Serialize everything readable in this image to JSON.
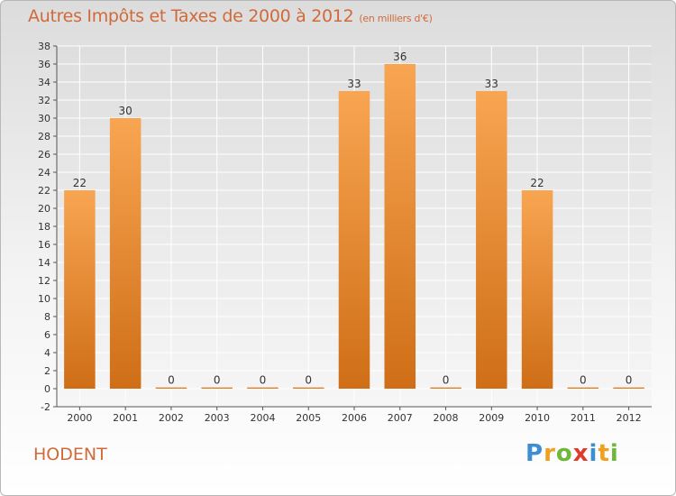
{
  "header": {
    "title": "Autres Impôts et Taxes de 2000 à 2012",
    "subtitle": "(en milliers d'€)"
  },
  "commune": "HODENT",
  "logo": {
    "letters": [
      "P",
      "r",
      "o",
      "x",
      "i",
      "t",
      "i"
    ],
    "colors": [
      "#3d8fd1",
      "#f0a020",
      "#6fb83a",
      "#e03a2a",
      "#3d8fd1",
      "#f0a020",
      "#6fb83a"
    ]
  },
  "chart_data": {
    "type": "bar",
    "categories": [
      "2000",
      "2001",
      "2002",
      "2003",
      "2004",
      "2005",
      "2006",
      "2007",
      "2008",
      "2009",
      "2010",
      "2011",
      "2012"
    ],
    "values": [
      22,
      30,
      0,
      0,
      0,
      0,
      33,
      36,
      0,
      33,
      22,
      0,
      0
    ],
    "title": "Autres Impôts et Taxes de 2000 à 2012",
    "subtitle": "(en milliers d'€)",
    "xlabel": "",
    "ylabel": "",
    "ylim": [
      -2,
      38
    ],
    "yticks": [
      -2,
      0,
      2,
      4,
      6,
      8,
      10,
      12,
      14,
      16,
      18,
      20,
      22,
      24,
      26,
      28,
      30,
      32,
      34,
      36,
      38
    ],
    "grid": true,
    "bar_color_top": "#f8a552",
    "bar_color_bottom": "#cf6e17"
  }
}
